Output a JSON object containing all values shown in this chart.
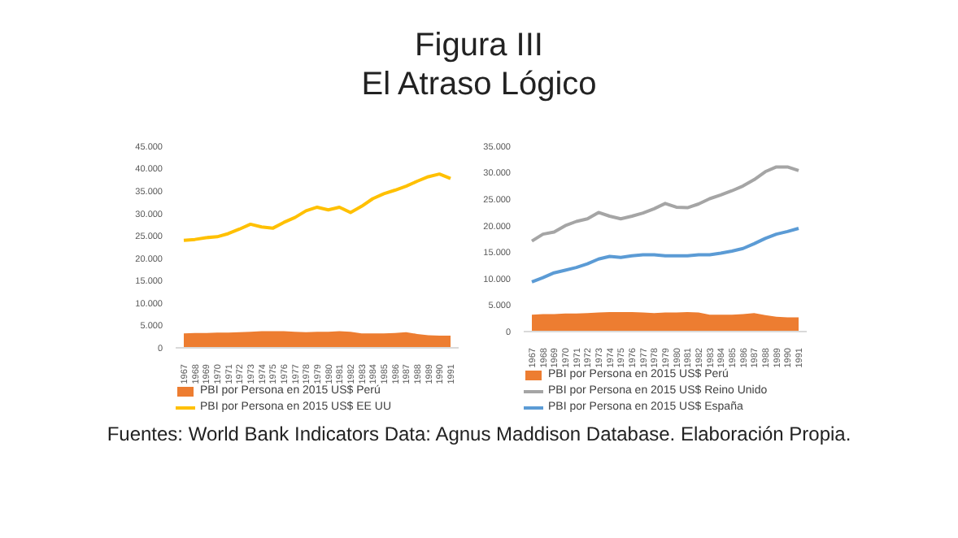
{
  "chart_data": [
    {
      "type": "line",
      "title": "Figura III\nEl Atraso Lógico",
      "categories": [
        "1967",
        "1968",
        "1969",
        "1970",
        "1971",
        "1972",
        "1973",
        "1974",
        "1975",
        "1976",
        "1977",
        "1978",
        "1979",
        "1980",
        "1981",
        "1982",
        "1983",
        "1984",
        "1985",
        "1986",
        "1987",
        "1988",
        "1989",
        "1990",
        "1991"
      ],
      "ylim": [
        0,
        45000
      ],
      "yticks": [
        {
          "value": 0,
          "label": "0"
        },
        {
          "value": 5000,
          "label": "5.000"
        },
        {
          "value": 10000,
          "label": "10.000"
        },
        {
          "value": 15000,
          "label": "15.000"
        },
        {
          "value": 20000,
          "label": "20.000"
        },
        {
          "value": 25000,
          "label": "25.000"
        },
        {
          "value": 30000,
          "label": "30.000"
        },
        {
          "value": 35000,
          "label": "35.000"
        },
        {
          "value": 40000,
          "label": "40.000"
        },
        {
          "value": 45000,
          "label": "45.000"
        }
      ],
      "legend": "bottom",
      "series": [
        {
          "name": "PBI por  Persona en 2015 US$ Perú",
          "type": "area",
          "color": "#ed7d31",
          "values": [
            3200,
            3300,
            3300,
            3400,
            3400,
            3500,
            3600,
            3700,
            3700,
            3700,
            3600,
            3500,
            3600,
            3600,
            3700,
            3600,
            3200,
            3200,
            3200,
            3300,
            3500,
            3100,
            2800,
            2700,
            2700
          ]
        },
        {
          "name": "PBI por  Persona en 2015 US$ EE UU",
          "color": "#ffc000",
          "values": [
            24000,
            24200,
            24600,
            24800,
            25500,
            26500,
            27600,
            27000,
            26700,
            28000,
            29100,
            30600,
            31400,
            30800,
            31400,
            30200,
            31600,
            33300,
            34400,
            35200,
            36100,
            37200,
            38200,
            38800,
            37800
          ]
        }
      ]
    },
    {
      "type": "line",
      "categories": [
        "1967",
        "1968",
        "1969",
        "1970",
        "1971",
        "1972",
        "1973",
        "1974",
        "1975",
        "1976",
        "1977",
        "1978",
        "1979",
        "1980",
        "1981",
        "1982",
        "1983",
        "1984",
        "1985",
        "1986",
        "1987",
        "1988",
        "1989",
        "1990",
        "1991"
      ],
      "ylim": [
        0,
        35000
      ],
      "yticks": [
        {
          "value": 0,
          "label": "0"
        },
        {
          "value": 5000,
          "label": "5.000"
        },
        {
          "value": 10000,
          "label": "10.000"
        },
        {
          "value": 15000,
          "label": "15.000"
        },
        {
          "value": 20000,
          "label": "20.000"
        },
        {
          "value": 25000,
          "label": "25.000"
        },
        {
          "value": 30000,
          "label": "30.000"
        },
        {
          "value": 35000,
          "label": "35.000"
        }
      ],
      "legend": "bottom",
      "annotations": [
        "Fuentes: World Bank Indicators Data: Agnus Maddison Database. Elaboración Propia."
      ],
      "series": [
        {
          "name": "PBI por  Persona en 2015 US$ Perú",
          "type": "area",
          "color": "#ed7d31",
          "values": [
            3200,
            3300,
            3300,
            3400,
            3400,
            3500,
            3600,
            3700,
            3700,
            3700,
            3600,
            3500,
            3600,
            3600,
            3700,
            3600,
            3200,
            3200,
            3200,
            3300,
            3500,
            3100,
            2800,
            2700,
            2700
          ]
        },
        {
          "name": "PBI por  Persona en 2015 US$ Reino Unido",
          "color": "#a5a5a5",
          "values": [
            17100,
            18400,
            18800,
            20000,
            20800,
            21300,
            22500,
            21800,
            21300,
            21800,
            22400,
            23200,
            24200,
            23500,
            23400,
            24100,
            25100,
            25800,
            26600,
            27500,
            28700,
            30200,
            31100,
            31100,
            30400
          ]
        },
        {
          "name": "PBI por  Persona en 2015 US$ España",
          "color": "#5b9bd5",
          "values": [
            9400,
            10200,
            11100,
            11600,
            12100,
            12800,
            13700,
            14200,
            14000,
            14300,
            14500,
            14500,
            14300,
            14300,
            14300,
            14500,
            14500,
            14800,
            15200,
            15700,
            16600,
            17600,
            18400,
            18900,
            19500
          ]
        }
      ]
    }
  ]
}
